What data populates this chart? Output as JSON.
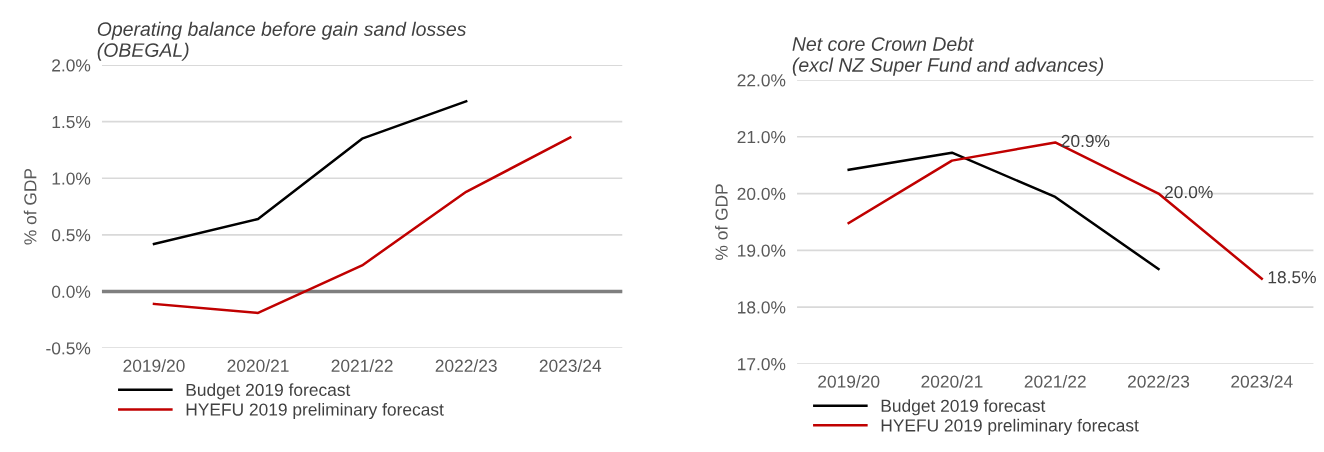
{
  "chart_data": [
    {
      "type": "line",
      "title": "Operating balance before gain sand losses\n(OBEGAL)",
      "ylabel": "% of GDP",
      "categories": [
        "2019/20",
        "2020/21",
        "2021/22",
        "2022/23",
        "2023/24"
      ],
      "series": [
        {
          "name": "Budget 2019 forecast",
          "color": "#000000",
          "values": [
            0.42,
            0.64,
            1.35,
            1.68,
            null
          ]
        },
        {
          "name": "HYEFU 2019 preliminary forecast",
          "color": "#c00000",
          "values": [
            -0.11,
            -0.19,
            0.23,
            0.88,
            1.36
          ]
        }
      ],
      "ylim": [
        -0.5,
        2.0
      ],
      "yticks": [
        {
          "value": -0.5,
          "label": "-0.5%"
        },
        {
          "value": 0.0,
          "label": "0.0%"
        },
        {
          "value": 0.5,
          "label": "0.5%"
        },
        {
          "value": 1.0,
          "label": "1.0%"
        },
        {
          "value": 1.5,
          "label": "1.5%"
        },
        {
          "value": 2.0,
          "label": "2.0%"
        }
      ],
      "ref_lines": [
        {
          "axis": "y",
          "value": 0,
          "color": "#7f7f7f"
        }
      ],
      "grid": "y",
      "legend": "bottom"
    },
    {
      "type": "line",
      "title": "Net core Crown Debt\n(excl NZ Super Fund and advances)",
      "ylabel": "% of GDP",
      "categories": [
        "2019/20",
        "2020/21",
        "2021/22",
        "2022/23",
        "2023/24"
      ],
      "series": [
        {
          "name": "Budget 2019 forecast",
          "color": "#000000",
          "values": [
            20.42,
            20.72,
            19.94,
            18.67,
            null
          ]
        },
        {
          "name": "HYEFU 2019 preliminary forecast",
          "color": "#c00000",
          "values": [
            19.48,
            20.58,
            20.9,
            20.0,
            18.5
          ],
          "value_labels": [
            null,
            null,
            "20.9%",
            "20.0%",
            "18.5%"
          ]
        }
      ],
      "ylim": [
        17.0,
        22.0
      ],
      "yticks": [
        {
          "value": 17.0,
          "label": "17.0%"
        },
        {
          "value": 18.0,
          "label": "18.0%"
        },
        {
          "value": 19.0,
          "label": "19.0%"
        },
        {
          "value": 20.0,
          "label": "20.0%"
        },
        {
          "value": 21.0,
          "label": "21.0%"
        },
        {
          "value": 22.0,
          "label": "22.0%"
        }
      ],
      "grid": "y",
      "legend": "bottom"
    }
  ]
}
